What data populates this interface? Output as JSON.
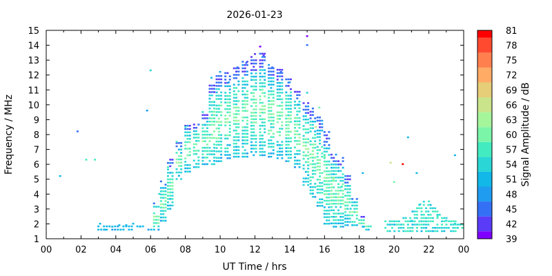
{
  "chart_data": {
    "type": "scatter",
    "title": "2026-01-23",
    "xlabel": "UT Time / hrs",
    "ylabel": "Frequency / MHz",
    "colorbar_label": "Signal Amplitude / dB",
    "xlim": [
      0,
      24
    ],
    "ylim": [
      1,
      15
    ],
    "x_ticks": [
      "00",
      "02",
      "04",
      "06",
      "08",
      "10",
      "12",
      "14",
      "16",
      "18",
      "20",
      "22",
      "00"
    ],
    "y_ticks": [
      "1",
      "2",
      "3",
      "4",
      "5",
      "6",
      "7",
      "8",
      "9",
      "10",
      "11",
      "12",
      "13",
      "14",
      "15"
    ],
    "colorbar_ticks": [
      "39",
      "42",
      "45",
      "48",
      "51",
      "54",
      "57",
      "60",
      "63",
      "66",
      "69",
      "72",
      "75",
      "78",
      "81"
    ],
    "colorbar_colors": [
      "#8000ff",
      "#5a3cf8",
      "#3470f5",
      "#1f9cf0",
      "#12b8e8",
      "#2ad6d6",
      "#42ecc0",
      "#7bf5a8",
      "#a5f59a",
      "#c9e48a",
      "#e6cd78",
      "#ffab66",
      "#ff7f4f",
      "#ff4a30",
      "#ff0000"
    ],
    "grid": false,
    "series": [
      {
        "description": "ionogram trace envelope (representative samples)",
        "points": [
          {
            "x": 0.8,
            "y": 5.2,
            "db": 51
          },
          {
            "x": 1.8,
            "y": 8.2,
            "db": 46
          },
          {
            "x": 2.3,
            "y": 6.3,
            "db": 57
          },
          {
            "x": 2.8,
            "y": 6.3,
            "db": 57
          },
          {
            "x": 3.1,
            "y": 2.0,
            "db": 50
          },
          {
            "x": 3.4,
            "y": 1.6,
            "db": 50
          },
          {
            "x": 3.8,
            "y": 1.8,
            "db": 51
          },
          {
            "x": 4.2,
            "y": 1.9,
            "db": 51
          },
          {
            "x": 4.6,
            "y": 1.9,
            "db": 50
          },
          {
            "x": 5.0,
            "y": 2.0,
            "db": 51
          },
          {
            "x": 5.4,
            "y": 1.8,
            "db": 51
          },
          {
            "x": 5.8,
            "y": 9.6,
            "db": 48
          },
          {
            "x": 6.0,
            "y": 12.3,
            "db": 54
          },
          {
            "x": 6.5,
            "y": 4.0,
            "db": 55
          },
          {
            "x": 7.0,
            "y": 5.8,
            "db": 56
          },
          {
            "x": 7.5,
            "y": 7.5,
            "db": 58
          },
          {
            "x": 8.0,
            "y": 8.5,
            "db": 56
          },
          {
            "x": 8.5,
            "y": 8.0,
            "db": 57
          },
          {
            "x": 9.0,
            "y": 9.5,
            "db": 55
          },
          {
            "x": 9.5,
            "y": 11.8,
            "db": 50
          },
          {
            "x": 10.0,
            "y": 12.2,
            "db": 47
          },
          {
            "x": 10.5,
            "y": 11.5,
            "db": 48
          },
          {
            "x": 11.0,
            "y": 12.5,
            "db": 46
          },
          {
            "x": 11.5,
            "y": 12.8,
            "db": 44
          },
          {
            "x": 12.0,
            "y": 13.4,
            "db": 42
          },
          {
            "x": 12.3,
            "y": 13.9,
            "db": 40
          },
          {
            "x": 12.5,
            "y": 13.3,
            "db": 42
          },
          {
            "x": 13.0,
            "y": 12.5,
            "db": 45
          },
          {
            "x": 13.5,
            "y": 12.2,
            "db": 46
          },
          {
            "x": 14.0,
            "y": 11.5,
            "db": 48
          },
          {
            "x": 14.5,
            "y": 10.0,
            "db": 52
          },
          {
            "x": 15.0,
            "y": 14.6,
            "db": 40
          },
          {
            "x": 15.0,
            "y": 14.0,
            "db": 45
          },
          {
            "x": 15.0,
            "y": 10.8,
            "db": 55
          },
          {
            "x": 15.5,
            "y": 8.5,
            "db": 66
          },
          {
            "x": 15.7,
            "y": 9.8,
            "db": 60
          },
          {
            "x": 16.0,
            "y": 6.5,
            "db": 60
          },
          {
            "x": 16.5,
            "y": 5.0,
            "db": 62
          },
          {
            "x": 17.0,
            "y": 4.5,
            "db": 56
          },
          {
            "x": 17.5,
            "y": 3.0,
            "db": 54
          },
          {
            "x": 18.2,
            "y": 1.8,
            "db": 52
          },
          {
            "x": 18.2,
            "y": 5.4,
            "db": 50
          },
          {
            "x": 19.8,
            "y": 6.1,
            "db": 66
          },
          {
            "x": 20.0,
            "y": 4.8,
            "db": 60
          },
          {
            "x": 20.5,
            "y": 6.0,
            "db": 81
          },
          {
            "x": 20.8,
            "y": 7.8,
            "db": 52
          },
          {
            "x": 21.0,
            "y": 2.2,
            "db": 55
          },
          {
            "x": 21.3,
            "y": 5.4,
            "db": 50
          },
          {
            "x": 21.5,
            "y": 3.3,
            "db": 54
          },
          {
            "x": 22.0,
            "y": 3.5,
            "db": 56
          },
          {
            "x": 22.5,
            "y": 2.5,
            "db": 56
          },
          {
            "x": 23.0,
            "y": 2.2,
            "db": 54
          },
          {
            "x": 23.5,
            "y": 2.0,
            "db": 55
          },
          {
            "x": 23.5,
            "y": 6.6,
            "db": 52
          }
        ]
      }
    ]
  }
}
